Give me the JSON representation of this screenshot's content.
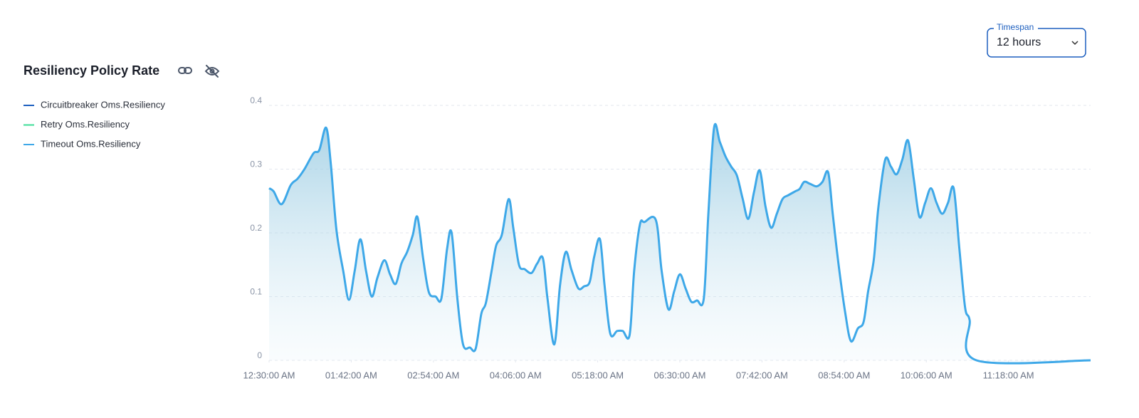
{
  "chart_data": {
    "type": "line",
    "title": "Resiliency Policy Rate",
    "fill_area": true,
    "grid": true,
    "xlim": [
      0,
      720
    ],
    "ylim": [
      0,
      0.4
    ],
    "yticks": [
      0,
      0.1,
      0.2,
      0.3,
      0.4
    ],
    "xticks": [
      {
        "value": 0,
        "label": "12:30:00 AM"
      },
      {
        "value": 72,
        "label": "01:42:00 AM"
      },
      {
        "value": 144,
        "label": "02:54:00 AM"
      },
      {
        "value": 216,
        "label": "04:06:00 AM"
      },
      {
        "value": 288,
        "label": "05:18:00 AM"
      },
      {
        "value": 360,
        "label": "06:30:00 AM"
      },
      {
        "value": 432,
        "label": "07:42:00 AM"
      },
      {
        "value": 504,
        "label": "08:54:00 AM"
      },
      {
        "value": 576,
        "label": "10:06:00 AM"
      },
      {
        "value": 648,
        "label": "11:18:00 AM"
      }
    ],
    "x": [
      0,
      4,
      11,
      19,
      25,
      31,
      39,
      44,
      50,
      54,
      59,
      65,
      70,
      75,
      80,
      85,
      90,
      95,
      101,
      106,
      111,
      116,
      121,
      126,
      130,
      135,
      140,
      146,
      151,
      156,
      160,
      165,
      170,
      176,
      181,
      186,
      190,
      195,
      199,
      204,
      210,
      214,
      219,
      224,
      230,
      235,
      240,
      244,
      250,
      255,
      260,
      265,
      271,
      276,
      281,
      285,
      290,
      294,
      299,
      305,
      310,
      316,
      320,
      325,
      329,
      339,
      344,
      350,
      355,
      360,
      365,
      370,
      375,
      381,
      385,
      390,
      395,
      400,
      405,
      410,
      415,
      420,
      425,
      430,
      435,
      440,
      445,
      450,
      455,
      461,
      465,
      469,
      474,
      480,
      485,
      490,
      494,
      499,
      505,
      510,
      516,
      521,
      525,
      530,
      534,
      540,
      545,
      550,
      555,
      560,
      565,
      570,
      575,
      580,
      585,
      590,
      595,
      600,
      605,
      610,
      614,
      620,
      720
    ],
    "series": [
      {
        "name": "Circuitbreaker Oms.Resiliency",
        "color": "#1d5fbf"
      },
      {
        "name": "Retry Oms.Resiliency",
        "color": "#3ddc97"
      },
      {
        "name": "Timeout Oms.Resiliency",
        "color": "#3ea8e8",
        "values": [
          0.27,
          0.265,
          0.245,
          0.275,
          0.285,
          0.3,
          0.325,
          0.33,
          0.365,
          0.31,
          0.205,
          0.14,
          0.095,
          0.14,
          0.19,
          0.14,
          0.1,
          0.13,
          0.157,
          0.135,
          0.12,
          0.152,
          0.17,
          0.197,
          0.225,
          0.16,
          0.107,
          0.1,
          0.097,
          0.175,
          0.2,
          0.097,
          0.025,
          0.02,
          0.018,
          0.073,
          0.09,
          0.14,
          0.18,
          0.197,
          0.253,
          0.208,
          0.15,
          0.143,
          0.137,
          0.152,
          0.16,
          0.097,
          0.025,
          0.118,
          0.17,
          0.142,
          0.113,
          0.116,
          0.123,
          0.163,
          0.19,
          0.118,
          0.042,
          0.046,
          0.046,
          0.04,
          0.141,
          0.213,
          0.217,
          0.22,
          0.141,
          0.08,
          0.108,
          0.135,
          0.113,
          0.092,
          0.094,
          0.097,
          0.23,
          0.365,
          0.343,
          0.32,
          0.304,
          0.29,
          0.254,
          0.222,
          0.264,
          0.298,
          0.242,
          0.208,
          0.23,
          0.253,
          0.259,
          0.265,
          0.269,
          0.28,
          0.277,
          0.273,
          0.28,
          0.295,
          0.23,
          0.152,
          0.074,
          0.03,
          0.05,
          0.06,
          0.108,
          0.158,
          0.24,
          0.315,
          0.304,
          0.292,
          0.315,
          0.345,
          0.285,
          0.225,
          0.247,
          0.27,
          0.247,
          0.23,
          0.247,
          0.27,
          0.175,
          0.083,
          0.063,
          0,
          0
        ]
      }
    ]
  },
  "timespan": {
    "label": "Timespan",
    "value": "12 hours"
  }
}
